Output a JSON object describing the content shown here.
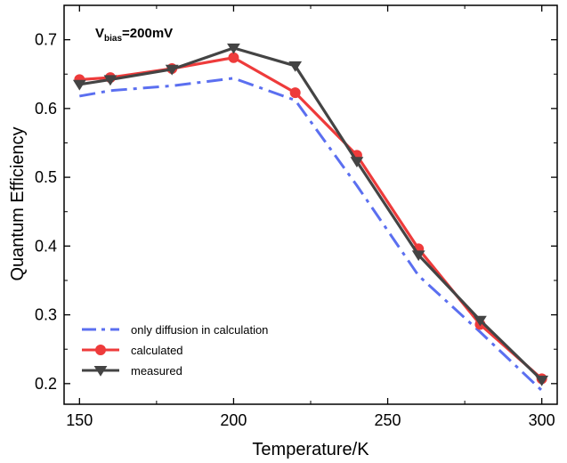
{
  "chart_data": {
    "type": "line",
    "xlabel": "Temperature/K",
    "ylabel": "Quantum Efficiency",
    "xlim": [
      145,
      305
    ],
    "ylim": [
      0.17,
      0.75
    ],
    "xticks": [
      150,
      200,
      250,
      300
    ],
    "yticks": [
      0.2,
      0.3,
      0.4,
      0.5,
      0.6,
      0.7
    ],
    "xtick_labels": [
      "150",
      "200",
      "250",
      "300"
    ],
    "ytick_labels": [
      "0.2",
      "0.3",
      "0.4",
      "0.5",
      "0.6",
      "0.7"
    ],
    "grid": false,
    "legend_position": "bottom-left",
    "annotation": {
      "base": "V",
      "sub": "bias",
      "rest": "=200mV"
    },
    "series": [
      {
        "name": "only diffusion in calculation",
        "color": "#5B6FF0",
        "style": "dashdot",
        "marker": "none",
        "x": [
          150,
          160,
          180,
          200,
          220,
          240,
          260,
          280,
          300
        ],
        "y": [
          0.618,
          0.626,
          0.633,
          0.644,
          0.612,
          0.488,
          0.357,
          0.275,
          0.19
        ]
      },
      {
        "name": "calculated",
        "color": "#EE3B3B",
        "style": "solid",
        "marker": "circle",
        "x": [
          150,
          160,
          180,
          200,
          220,
          240,
          260,
          280,
          300
        ],
        "y": [
          0.642,
          0.645,
          0.658,
          0.674,
          0.623,
          0.532,
          0.396,
          0.286,
          0.207
        ]
      },
      {
        "name": "measured",
        "color": "#444444",
        "style": "solid",
        "marker": "triangle-down",
        "x": [
          150,
          160,
          180,
          200,
          220,
          240,
          260,
          280,
          300
        ],
        "y": [
          0.635,
          0.642,
          0.657,
          0.688,
          0.662,
          0.523,
          0.387,
          0.292,
          0.205
        ]
      }
    ]
  }
}
